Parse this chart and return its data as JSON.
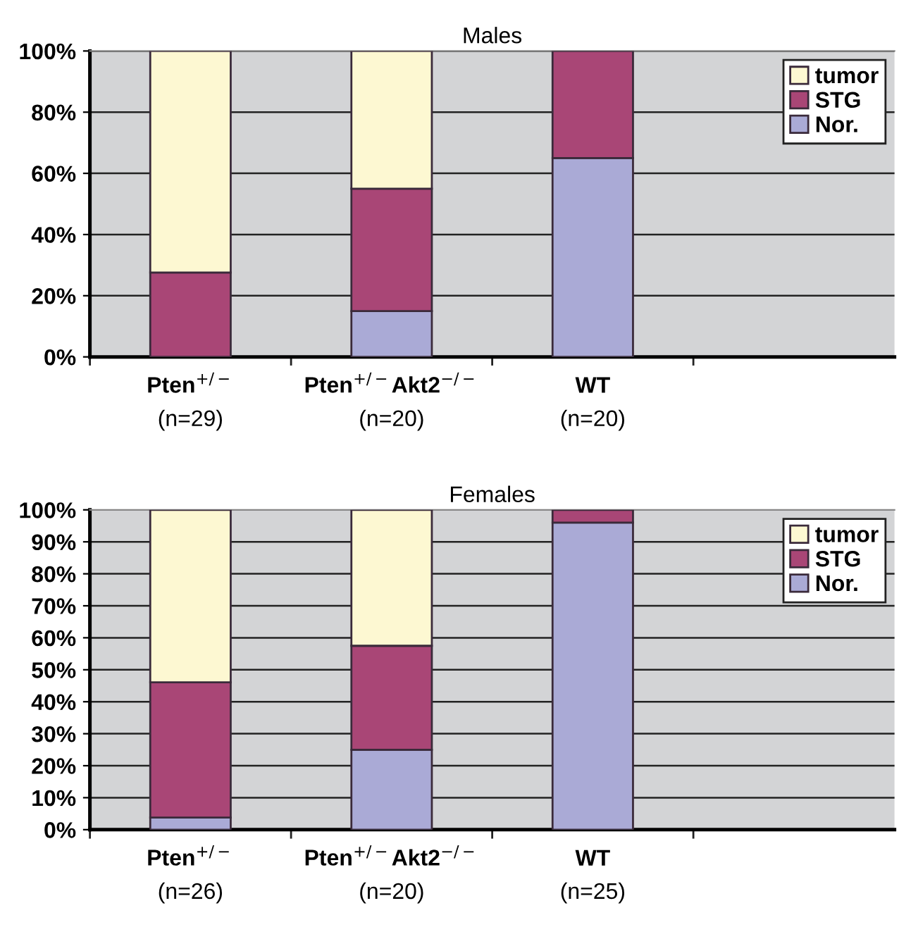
{
  "chart_data": [
    {
      "type": "bar",
      "title": "Males",
      "stacked": true,
      "grid": "y",
      "legend": "top right",
      "categories": [
        "Pten$^{+/−}$\n(n=29)",
        "Pten$^{+/−}$Akt2$^{−/−}$\n(n=20)",
        "WT\n(n=20)",
        null
      ],
      "series": [
        {
          "name": "Nor.",
          "color": "#aaaad6",
          "values": [
            0,
            15,
            65,
            null
          ]
        },
        {
          "name": "STG",
          "color": "#a94676",
          "values": [
            27.6,
            40,
            35,
            null
          ]
        },
        {
          "name": "tumor",
          "color": "#fdf8d2",
          "values": [
            72.4,
            45,
            null,
            null
          ]
        }
      ],
      "ylim": [
        0,
        100
      ],
      "yticks": [
        {
          "value": 0,
          "label": "0%"
        },
        {
          "value": 20,
          "label": "20%"
        },
        {
          "value": 40,
          "label": "40%"
        },
        {
          "value": 60,
          "label": "60%"
        },
        {
          "value": 80,
          "label": "80%"
        },
        {
          "value": 100,
          "label": "100%"
        }
      ]
    },
    {
      "type": "bar",
      "title": "Females",
      "stacked": true,
      "grid": "y",
      "legend": "top right",
      "categories": [
        "Pten$^{+/−}$\n(n=26)",
        "Pten$^{+/−}$Akt2$^{−/−}$\n(n=20)",
        "WT\n(n=25)",
        null
      ],
      "series": [
        {
          "name": "Nor.",
          "color": "#aaaad6",
          "values": [
            3.8,
            25,
            96,
            null
          ]
        },
        {
          "name": "STG",
          "color": "#a94676",
          "values": [
            42.3,
            32.5,
            4,
            null
          ]
        },
        {
          "name": "tumor",
          "color": "#fdf8d2",
          "values": [
            53.9,
            42.5,
            null,
            null
          ]
        }
      ],
      "ylim": [
        0,
        100
      ],
      "yticks": [
        {
          "value": 0,
          "label": "0%"
        },
        {
          "value": 10,
          "label": "10%"
        },
        {
          "value": 20,
          "label": "20%"
        },
        {
          "value": 30,
          "label": "30%"
        },
        {
          "value": 40,
          "label": "40%"
        },
        {
          "value": 50,
          "label": "50%"
        },
        {
          "value": 60,
          "label": "60%"
        },
        {
          "value": 70,
          "label": "70%"
        },
        {
          "value": 80,
          "label": "80%"
        },
        {
          "value": 90,
          "label": "90%"
        },
        {
          "value": 100,
          "label": "100%"
        }
      ]
    }
  ]
}
